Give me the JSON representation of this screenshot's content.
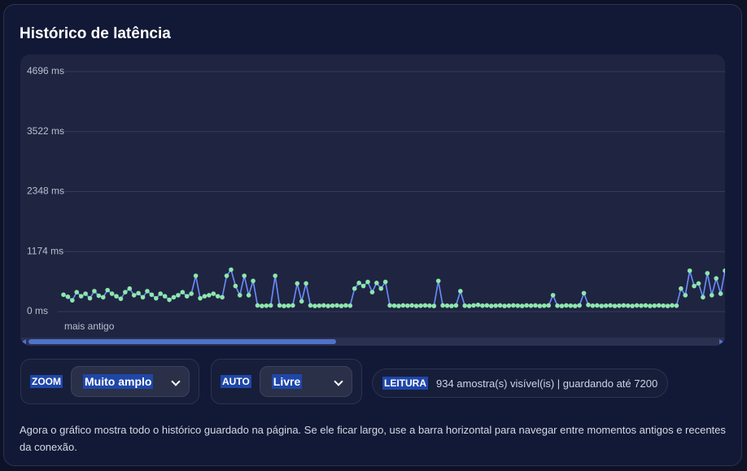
{
  "header": {
    "title": "Histórico de latência"
  },
  "chart_data": {
    "type": "line",
    "values": [
      330,
      290,
      220,
      380,
      300,
      350,
      260,
      400,
      310,
      280,
      420,
      350,
      300,
      250,
      380,
      450,
      320,
      360,
      280,
      400,
      330,
      260,
      350,
      300,
      230,
      280,
      320,
      380,
      300,
      350,
      700,
      260,
      300,
      320,
      350,
      300,
      280,
      700,
      820,
      500,
      320,
      700,
      320,
      600,
      120,
      110,
      115,
      120,
      700,
      120,
      110,
      115,
      120,
      550,
      200,
      550,
      120,
      110,
      115,
      120,
      110,
      115,
      120,
      110,
      120,
      115,
      450,
      560,
      500,
      580,
      380,
      560,
      450,
      580,
      120,
      115,
      110,
      120,
      115,
      120,
      110,
      115,
      120,
      115,
      110,
      600,
      120,
      115,
      110,
      120,
      400,
      115,
      110,
      120,
      130,
      115,
      120,
      110,
      115,
      120,
      110,
      115,
      120,
      115,
      110,
      120,
      115,
      120,
      110,
      115,
      120,
      320,
      115,
      110,
      120,
      115,
      110,
      120,
      360,
      130,
      115,
      120,
      110,
      115,
      120,
      110,
      115,
      120,
      115,
      110,
      120,
      115,
      120,
      110,
      115,
      120,
      115,
      110,
      120,
      115,
      450,
      320,
      800,
      500,
      550,
      280,
      750,
      320,
      650,
      350,
      800
    ],
    "line_color": "#6b8cff",
    "marker_color": "#8ee6ad",
    "ylim": [
      0,
      4696
    ],
    "yticks": [
      {
        "value": 0,
        "label": "0 ms"
      },
      {
        "value": 1174,
        "label": "1174 ms"
      },
      {
        "value": 2348,
        "label": "2348 ms"
      },
      {
        "value": 3522,
        "label": "3522 ms"
      },
      {
        "value": 4696,
        "label": "4696 ms"
      }
    ],
    "grid": true,
    "annotation": "mais antigo"
  },
  "controls": [
    {
      "label": "ZOOM",
      "value": "Muito amplo"
    },
    {
      "label": "AUTO",
      "value": "Livre"
    },
    {
      "label": "LEITURA",
      "value": "934 amostra(s) visível(is) | guardando até 7200"
    }
  ],
  "footer": "Agora o gráfico mostra todo o histórico guardado na página. Se ele ficar largo, use a barra horizontal para navegar entre momentos antigos e recentes da conexão."
}
